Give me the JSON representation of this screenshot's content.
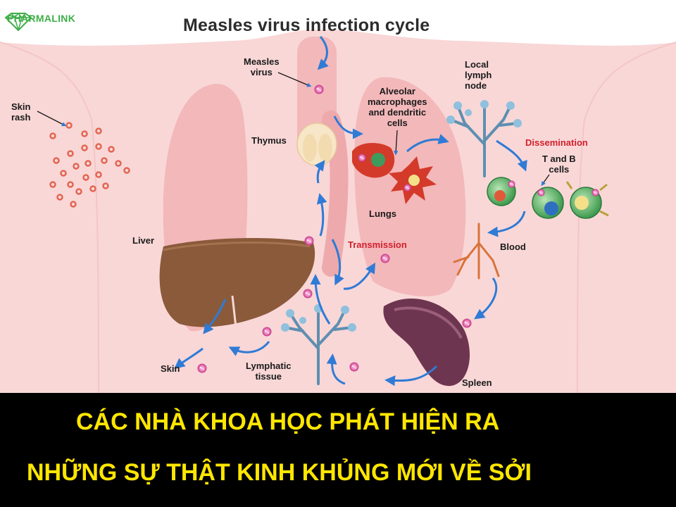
{
  "brand": {
    "name": "PHARMALINK",
    "logo_icon": "diamond-logo-icon",
    "color": "#3fae49"
  },
  "diagram": {
    "title": "Measles virus infection cycle",
    "labels": {
      "measles_virus": "Measles\nvirus",
      "skin_rash": "Skin\nrash",
      "thymus": "Thymus",
      "alveolar": "Alveolar\nmacrophages\nand dendritic\ncells",
      "local_lymph": "Local\nlymph\nnode",
      "dissemination": "Dissemination",
      "t_and_b": "T and B\ncells",
      "lungs": "Lungs",
      "liver": "Liver",
      "transmission": "Transmission",
      "blood": "Blood",
      "skin": "Skin",
      "lymphatic": "Lymphatic\ntissue",
      "spleen": "Spleen"
    },
    "colors": {
      "body": "#f9d6d6",
      "organ": "#f2b6b8",
      "arrow": "#2f7bd6",
      "liver": "#8a5a3a",
      "spleen": "#6e3550",
      "red_label": "#d0202c",
      "rash": "#e26552"
    }
  },
  "banner": {
    "line1": "CÁC NHÀ KHOA HỌC PHÁT HIỆN RA",
    "line2": "NHỮNG SỰ THẬT KINH KHỦNG MỚI VỀ SỞI",
    "text_color": "#ffe600",
    "background": "#000000"
  }
}
